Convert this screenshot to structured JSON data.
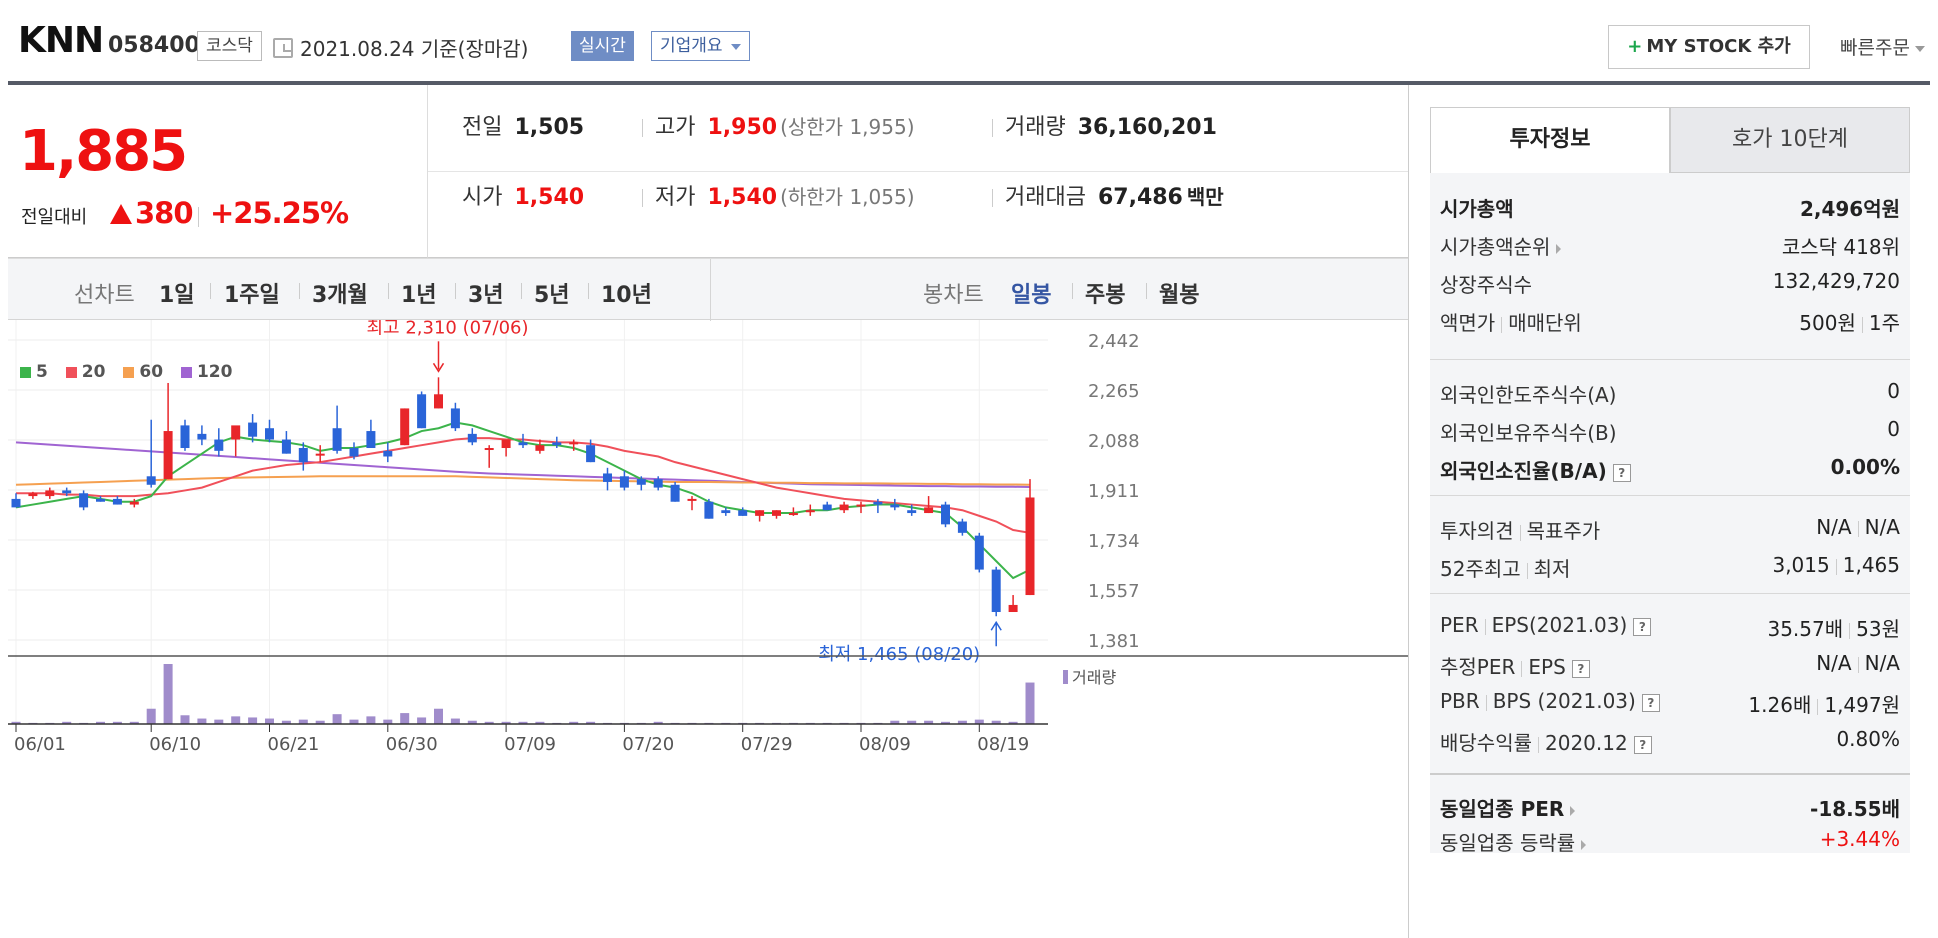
{
  "header": {
    "name": "KNN",
    "code": "058400",
    "market": "코스닥",
    "date": "2021.08.24 기준(장마감)",
    "realtime_label": "실시간",
    "overview_label": "기업개요",
    "mystock_label": "MY STOCK 추가",
    "quickorder_label": "빠른주문"
  },
  "price": {
    "current": "1,885",
    "compare_label": "전일대비",
    "change": "380",
    "change_pct": "+25.25%"
  },
  "quote": {
    "prev_close": {
      "label": "전일",
      "value": "1,505"
    },
    "open": {
      "label": "시가",
      "value": "1,540"
    },
    "high": {
      "label": "고가",
      "value": "1,950",
      "sub": "(상한가 1,955)"
    },
    "low": {
      "label": "저가",
      "value": "1,540",
      "sub": "(하한가 1,055)"
    },
    "volume": {
      "label": "거래량",
      "value": "36,160,201"
    },
    "amount": {
      "label": "거래대금",
      "value": "67,486",
      "unit": "백만"
    }
  },
  "period_bar": {
    "line_label": "선차트",
    "line_periods": [
      "1일",
      "1주일",
      "3개월",
      "1년",
      "3년",
      "5년",
      "10년"
    ],
    "candle_label": "봉차트",
    "candle_periods": [
      "일봉",
      "주봉",
      "월봉"
    ],
    "candle_active": "일봉"
  },
  "chart_data": {
    "type": "candlestick",
    "legend": [
      "5",
      "20",
      "60",
      "120"
    ],
    "legend_colors": [
      "#3cb44b",
      "#f0505a",
      "#f5a050",
      "#a064d2"
    ],
    "y_ticks": [
      "2,442",
      "2,265",
      "2,088",
      "1,911",
      "1,734",
      "1,557",
      "1,381"
    ],
    "ylim": [
      1381,
      2442
    ],
    "x_ticks": [
      "06/01",
      "06/10",
      "06/21",
      "06/30",
      "07/09",
      "07/20",
      "07/29",
      "08/09",
      "08/19"
    ],
    "max_annotation": "최고 2,310 (07/06)",
    "min_annotation": "최저 1,465 (08/20)",
    "volume_label": "거래량",
    "up_color": "#e8262a",
    "down_color": "#2a64d8",
    "candles": [
      [
        1880,
        1900,
        1850,
        1850
      ],
      [
        1890,
        1905,
        1880,
        1900
      ],
      [
        1890,
        1920,
        1880,
        1910
      ],
      [
        1910,
        1920,
        1890,
        1900
      ],
      [
        1900,
        1910,
        1840,
        1850
      ],
      [
        1880,
        1890,
        1870,
        1870
      ],
      [
        1880,
        1890,
        1860,
        1860
      ],
      [
        1860,
        1880,
        1850,
        1870
      ],
      [
        1960,
        2160,
        1920,
        1930
      ],
      [
        1950,
        2290,
        1950,
        2120
      ],
      [
        2140,
        2160,
        2050,
        2060
      ],
      [
        2110,
        2140,
        2070,
        2090
      ],
      [
        2090,
        2130,
        2030,
        2050
      ],
      [
        2090,
        2130,
        2030,
        2140
      ],
      [
        2150,
        2180,
        2080,
        2100
      ],
      [
        2130,
        2160,
        2080,
        2090
      ],
      [
        2090,
        2120,
        2040,
        2040
      ],
      [
        2060,
        2080,
        1980,
        2010
      ],
      [
        2040,
        2070,
        2010,
        2040
      ],
      [
        2130,
        2210,
        2040,
        2050
      ],
      [
        2060,
        2080,
        2020,
        2030
      ],
      [
        2120,
        2160,
        2060,
        2060
      ],
      [
        2050,
        2080,
        2010,
        2030
      ],
      [
        2070,
        2200,
        2070,
        2200
      ],
      [
        2250,
        2260,
        2130,
        2130
      ],
      [
        2200,
        2310,
        2200,
        2250
      ],
      [
        2200,
        2220,
        2120,
        2130
      ],
      [
        2110,
        2130,
        2070,
        2080
      ],
      [
        2060,
        2070,
        1990,
        2060
      ],
      [
        2060,
        2080,
        2030,
        2090
      ],
      [
        2080,
        2110,
        2060,
        2070
      ],
      [
        2050,
        2090,
        2040,
        2070
      ],
      [
        2080,
        2100,
        2060,
        2070
      ],
      [
        2080,
        2090,
        2050,
        2080
      ],
      [
        2070,
        2090,
        2010,
        2010
      ],
      [
        1970,
        1990,
        1910,
        1940
      ],
      [
        1960,
        1980,
        1910,
        1920
      ],
      [
        1950,
        1960,
        1910,
        1930
      ],
      [
        1950,
        1960,
        1910,
        1920
      ],
      [
        1930,
        1940,
        1870,
        1870
      ],
      [
        1880,
        1890,
        1840,
        1880
      ],
      [
        1870,
        1880,
        1810,
        1810
      ],
      [
        1840,
        1850,
        1820,
        1830
      ],
      [
        1840,
        1850,
        1820,
        1820
      ],
      [
        1820,
        1840,
        1800,
        1840
      ],
      [
        1820,
        1840,
        1810,
        1840
      ],
      [
        1830,
        1850,
        1820,
        1830
      ],
      [
        1840,
        1860,
        1820,
        1840
      ],
      [
        1860,
        1870,
        1840,
        1840
      ],
      [
        1840,
        1870,
        1830,
        1860
      ],
      [
        1860,
        1870,
        1830,
        1860
      ],
      [
        1870,
        1880,
        1830,
        1860
      ],
      [
        1860,
        1880,
        1840,
        1850
      ],
      [
        1840,
        1860,
        1820,
        1830
      ],
      [
        1830,
        1890,
        1830,
        1850
      ],
      [
        1860,
        1870,
        1780,
        1790
      ],
      [
        1800,
        1810,
        1750,
        1760
      ],
      [
        1750,
        1760,
        1620,
        1630
      ],
      [
        1630,
        1640,
        1465,
        1480
      ],
      [
        1480,
        1540,
        1480,
        1505
      ],
      [
        1540,
        1950,
        1540,
        1885
      ]
    ],
    "volumes": [
      2,
      1,
      1,
      2,
      1,
      2,
      2,
      2,
      14,
      55,
      8,
      5,
      4,
      7,
      6,
      5,
      3,
      4,
      3,
      9,
      4,
      7,
      4,
      10,
      6,
      14,
      5,
      3,
      2,
      2,
      2,
      2,
      1,
      2,
      2,
      1,
      1,
      1,
      2,
      1,
      1,
      1,
      1,
      1,
      1,
      1,
      1,
      1,
      1,
      1,
      1,
      1,
      3,
      3,
      3,
      2,
      3,
      4,
      3,
      2,
      38
    ],
    "ma5": [
      1850,
      1860,
      1870,
      1880,
      1890,
      1880,
      1870,
      1870,
      1890,
      1960,
      2000,
      2040,
      2080,
      2100,
      2090,
      2085,
      2080,
      2070,
      2050,
      2060,
      2060,
      2070,
      2080,
      2095,
      2120,
      2130,
      2150,
      2140,
      2120,
      2100,
      2080,
      2070,
      2070,
      2060,
      2040,
      2010,
      1980,
      1950,
      1930,
      1920,
      1900,
      1870,
      1850,
      1840,
      1830,
      1830,
      1830,
      1840,
      1840,
      1850,
      1855,
      1860,
      1860,
      1850,
      1840,
      1830,
      1780,
      1720,
      1660,
      1600,
      1630
    ],
    "ma20": [
      1900,
      1900,
      1900,
      1895,
      1895,
      1890,
      1890,
      1890,
      1895,
      1900,
      1910,
      1920,
      1940,
      1960,
      1980,
      1990,
      2000,
      2005,
      2010,
      2020,
      2030,
      2040,
      2050,
      2060,
      2070,
      2080,
      2090,
      2095,
      2095,
      2090,
      2090,
      2085,
      2080,
      2080,
      2075,
      2065,
      2050,
      2040,
      2030,
      2010,
      1995,
      1980,
      1965,
      1950,
      1935,
      1920,
      1910,
      1900,
      1890,
      1880,
      1875,
      1870,
      1865,
      1860,
      1855,
      1850,
      1840,
      1820,
      1800,
      1770,
      1760
    ],
    "ma60": [
      1930,
      1932,
      1934,
      1936,
      1938,
      1940,
      1942,
      1944,
      1946,
      1948,
      1950,
      1952,
      1954,
      1955,
      1956,
      1957,
      1958,
      1959,
      1960,
      1960,
      1960,
      1960,
      1960,
      1960,
      1960,
      1960,
      1960,
      1958,
      1956,
      1954,
      1952,
      1950,
      1948,
      1946,
      1945,
      1944,
      1943,
      1942,
      1941,
      1940,
      1940,
      1940,
      1939,
      1938,
      1938,
      1937,
      1937,
      1936,
      1936,
      1935,
      1935,
      1935,
      1934,
      1934,
      1933,
      1933,
      1932,
      1932,
      1931,
      1931,
      1930
    ],
    "ma120": [
      2080,
      2076,
      2072,
      2068,
      2064,
      2060,
      2056,
      2052,
      2048,
      2044,
      2040,
      2036,
      2032,
      2028,
      2024,
      2020,
      2016,
      2012,
      2008,
      2004,
      2000,
      1996,
      1992,
      1988,
      1984,
      1980,
      1976,
      1973,
      1970,
      1968,
      1966,
      1964,
      1962,
      1960,
      1958,
      1956,
      1954,
      1952,
      1950,
      1948,
      1946,
      1944,
      1942,
      1940,
      1938,
      1936,
      1934,
      1932,
      1931,
      1930,
      1929,
      1928,
      1927,
      1926,
      1925,
      1925,
      1924,
      1924,
      1923,
      1923,
      1922
    ]
  },
  "tabs": {
    "invest_info": "투자정보",
    "hoga": "호가 10단계"
  },
  "info": {
    "market_cap": {
      "label": "시가총액",
      "value": "2,496억원"
    },
    "market_cap_rank": {
      "label": "시가총액순위",
      "value": "코스닥 418위"
    },
    "shares": {
      "label": "상장주식수",
      "value": "132,429,720"
    },
    "face_value": {
      "label": "액면가",
      "label2": "매매단위",
      "value": "500원",
      "value2": "1주"
    },
    "foreign_limit": {
      "label": "외국인한도주식수(A)",
      "value": "0"
    },
    "foreign_hold": {
      "label": "외국인보유주식수(B)",
      "value": "0"
    },
    "foreign_ratio": {
      "label": "외국인소진율(B/A)",
      "value": "0.00%"
    },
    "opinion": {
      "label": "투자의견",
      "label2": "목표주가",
      "value": "N/A",
      "value2": "N/A"
    },
    "week52": {
      "label": "52주최고",
      "label2": "최저",
      "value": "3,015",
      "value2": "1,465"
    },
    "per": {
      "label": "PER",
      "label2": "EPS(2021.03)",
      "value": "35.57배",
      "value2": "53원"
    },
    "est_per": {
      "label": "추정PER",
      "label2": "EPS",
      "value": "N/A",
      "value2": "N/A"
    },
    "pbr": {
      "label": "PBR",
      "label2": "BPS (2021.03)",
      "value": "1.26배",
      "value2": "1,497원"
    },
    "dividend": {
      "label": "배당수익률",
      "label2": "2020.12",
      "value": "0.80%"
    },
    "sector_per": {
      "label": "동일업종 PER",
      "value": "-18.55배"
    },
    "sector_chg": {
      "label": "동일업종 등락률",
      "value": "+3.44%"
    }
  }
}
